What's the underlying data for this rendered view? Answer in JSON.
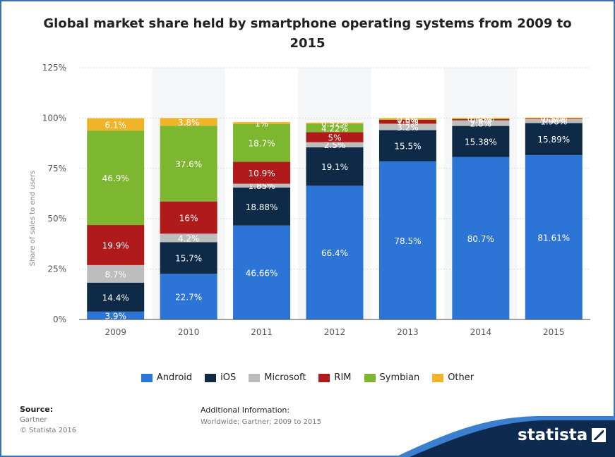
{
  "title": "Global market share held by smartphone operating systems from 2009 to 2015",
  "chart_data": {
    "type": "bar",
    "stacked": true,
    "title": "Global market share held by smartphone operating systems from 2009 to 2015",
    "ylabel": "Share of sales to end users",
    "xlabel": "",
    "ylim": [
      0,
      125
    ],
    "yticks": [
      "0%",
      "25%",
      "50%",
      "75%",
      "100%",
      "125%"
    ],
    "ytick_values": [
      0,
      25,
      50,
      75,
      100,
      125
    ],
    "grid": true,
    "legend_position": "bottom",
    "categories": [
      "2009",
      "2010",
      "2011",
      "2012",
      "2013",
      "2014",
      "2015"
    ],
    "series": [
      {
        "name": "Android",
        "color": "#2c74d6",
        "values": [
          3.9,
          22.7,
          46.66,
          66.4,
          78.5,
          80.7,
          81.61
        ],
        "labels": [
          "3.9%",
          "22.7%",
          "46.66%",
          "66.4%",
          "78.5%",
          "80.7%",
          "81.61%"
        ]
      },
      {
        "name": "iOS",
        "color": "#0e2a47",
        "values": [
          14.4,
          15.7,
          18.88,
          19.1,
          15.5,
          15.38,
          15.89
        ],
        "labels": [
          "14.4%",
          "15.7%",
          "18.88%",
          "19.1%",
          "15.5%",
          "15.38%",
          "15.89%"
        ]
      },
      {
        "name": "Microsoft",
        "color": "#bdbdbd",
        "values": [
          8.7,
          4.2,
          1.85,
          2.5,
          3.2,
          2.8,
          1.98
        ],
        "labels": [
          "8.7%",
          "4.2%",
          "1.85%",
          "2.5%",
          "3.2%",
          "2.8%",
          "1.98%"
        ]
      },
      {
        "name": "RIM",
        "color": "#b01a1a",
        "values": [
          19.9,
          16,
          10.9,
          5,
          1.9,
          0.6,
          0.3
        ],
        "labels": [
          "19.9%",
          "16%",
          "10.9%",
          "5%",
          "1.9%",
          "0.6%",
          "0.3%"
        ]
      },
      {
        "name": "Symbian",
        "color": "#7db72f",
        "values": [
          46.9,
          37.6,
          18.7,
          4.22,
          0.3,
          0.2,
          0.1
        ],
        "labels": [
          "46.9%",
          "37.6%",
          "18.7%",
          "4.22%",
          "0.3%",
          "0.2%",
          "0.1%"
        ]
      },
      {
        "name": "Other",
        "color": "#f0b429",
        "values": [
          6.1,
          3.8,
          1,
          0.52,
          0.6,
          0.45,
          0.37
        ],
        "labels": [
          "6.1%",
          "3.8%",
          "1%",
          "0.52%",
          "0.6%",
          "0.45%",
          "0.37%"
        ]
      }
    ]
  },
  "footer": {
    "source_label": "Source:",
    "source_value": "Gartner",
    "copyright": "© Statista 2016",
    "info_label": "Additional Information:",
    "info_value": "Worldwide; Gartner; 2009 to 2015",
    "logo_text": "statista"
  },
  "colors": {
    "frame": "#3b6fb6",
    "footer_dark": "#0e2a4e",
    "footer_accent": "#3b7fd0"
  }
}
